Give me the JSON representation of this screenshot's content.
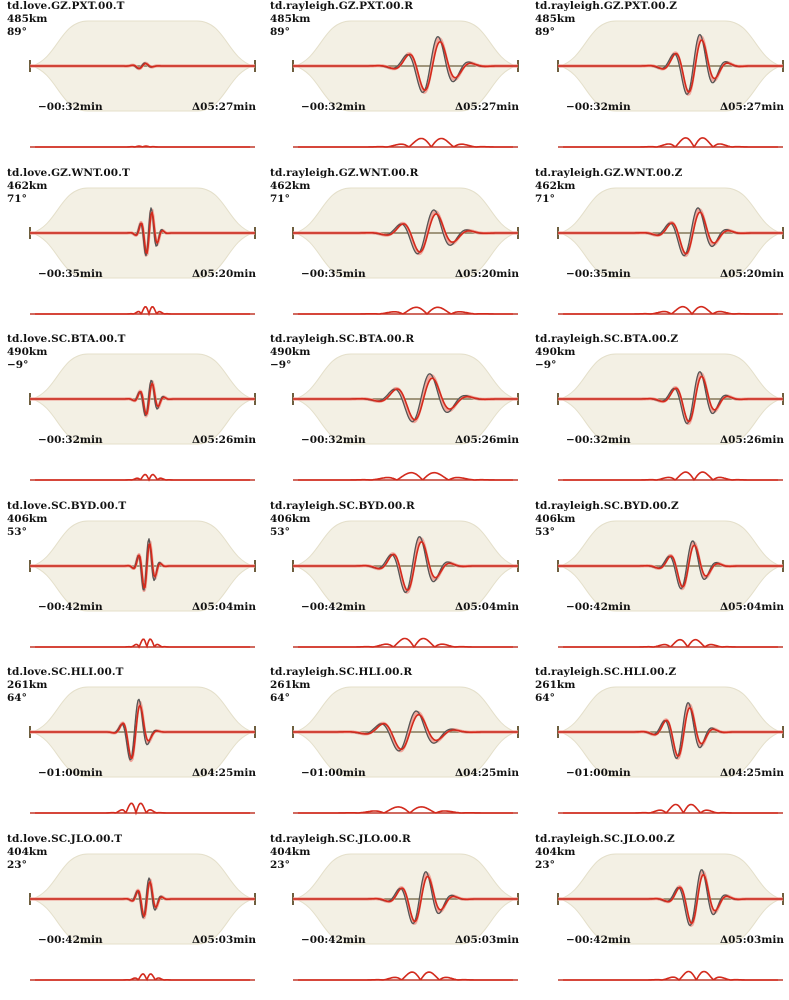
{
  "chart_data": [
    {
      "type": "line",
      "title": "td.love.GZ.PXT.00.T",
      "distance": "485km",
      "azimuth": "89°",
      "time_start": "−00:32min",
      "time_end": "Δ05:27min",
      "series": [
        {
          "values": []
        },
        {
          "values": []
        }
      ],
      "legend": "none",
      "grid": false
    },
    {
      "type": "line",
      "title": "td.rayleigh.GZ.PXT.00.R",
      "distance": "485km",
      "azimuth": "89°",
      "time_start": "−00:32min",
      "time_end": "Δ05:27min",
      "series": [
        {
          "values": []
        },
        {
          "values": []
        }
      ],
      "legend": "none",
      "grid": false
    },
    {
      "type": "line",
      "title": "td.rayleigh.GZ.PXT.00.Z",
      "distance": "485km",
      "azimuth": "89°",
      "time_start": "−00:32min",
      "time_end": "Δ05:27min",
      "series": [
        {
          "values": []
        },
        {
          "values": []
        }
      ],
      "legend": "none",
      "grid": false
    },
    {
      "type": "line",
      "title": "td.love.GZ.WNT.00.T",
      "distance": "462km",
      "azimuth": "71°",
      "time_start": "−00:35min",
      "time_end": "Δ05:20min",
      "series": [
        {
          "values": []
        },
        {
          "values": []
        }
      ],
      "legend": "none",
      "grid": false
    },
    {
      "type": "line",
      "title": "td.rayleigh.GZ.WNT.00.R",
      "distance": "462km",
      "azimuth": "71°",
      "time_start": "−00:35min",
      "time_end": "Δ05:20min",
      "series": [
        {
          "values": []
        },
        {
          "values": []
        }
      ],
      "legend": "none",
      "grid": false
    },
    {
      "type": "line",
      "title": "td.rayleigh.GZ.WNT.00.Z",
      "distance": "462km",
      "azimuth": "71°",
      "time_start": "−00:35min",
      "time_end": "Δ05:20min",
      "series": [
        {
          "values": []
        },
        {
          "values": []
        }
      ],
      "legend": "none",
      "grid": false
    },
    {
      "type": "line",
      "title": "td.love.SC.BTA.00.T",
      "distance": "490km",
      "azimuth": "−9°",
      "time_start": "−00:32min",
      "time_end": "Δ05:26min",
      "series": [
        {
          "values": []
        },
        {
          "values": []
        }
      ],
      "legend": "none",
      "grid": false
    },
    {
      "type": "line",
      "title": "td.rayleigh.SC.BTA.00.R",
      "distance": "490km",
      "azimuth": "−9°",
      "time_start": "−00:32min",
      "time_end": "Δ05:26min",
      "series": [
        {
          "values": []
        },
        {
          "values": []
        }
      ],
      "legend": "none",
      "grid": false
    },
    {
      "type": "line",
      "title": "td.rayleigh.SC.BTA.00.Z",
      "distance": "490km",
      "azimuth": "−9°",
      "time_start": "−00:32min",
      "time_end": "Δ05:26min",
      "series": [
        {
          "values": []
        },
        {
          "values": []
        }
      ],
      "legend": "none",
      "grid": false
    },
    {
      "type": "line",
      "title": "td.love.SC.BYD.00.T",
      "distance": "406km",
      "azimuth": "53°",
      "time_start": "−00:42min",
      "time_end": "Δ05:04min",
      "series": [
        {
          "values": []
        },
        {
          "values": []
        }
      ],
      "legend": "none",
      "grid": false
    },
    {
      "type": "line",
      "title": "td.rayleigh.SC.BYD.00.R",
      "distance": "406km",
      "azimuth": "53°",
      "time_start": "−00:42min",
      "time_end": "Δ05:04min",
      "series": [
        {
          "values": []
        },
        {
          "values": []
        }
      ],
      "legend": "none",
      "grid": false
    },
    {
      "type": "line",
      "title": "td.rayleigh.SC.BYD.00.Z",
      "distance": "406km",
      "azimuth": "53°",
      "time_start": "−00:42min",
      "time_end": "Δ05:04min",
      "series": [
        {
          "values": []
        },
        {
          "values": []
        }
      ],
      "legend": "none",
      "grid": false
    },
    {
      "type": "line",
      "title": "td.love.SC.HLI.00.T",
      "distance": "261km",
      "azimuth": "64°",
      "time_start": "−01:00min",
      "time_end": "Δ04:25min",
      "series": [
        {
          "values": []
        },
        {
          "values": []
        }
      ],
      "legend": "none",
      "grid": false
    },
    {
      "type": "line",
      "title": "td.rayleigh.SC.HLI.00.R",
      "distance": "261km",
      "azimuth": "64°",
      "time_start": "−01:00min",
      "time_end": "Δ04:25min",
      "series": [
        {
          "values": []
        },
        {
          "values": []
        }
      ],
      "legend": "none",
      "grid": false
    },
    {
      "type": "line",
      "title": "td.rayleigh.SC.HLI.00.Z",
      "distance": "261km",
      "azimuth": "64°",
      "time_start": "−01:00min",
      "time_end": "Δ04:25min",
      "series": [
        {
          "values": []
        },
        {
          "values": []
        }
      ],
      "legend": "none",
      "grid": false
    },
    {
      "type": "line",
      "title": "td.love.SC.JLO.00.T",
      "distance": "404km",
      "azimuth": "23°",
      "time_start": "−00:42min",
      "time_end": "Δ05:03min",
      "series": [
        {
          "values": []
        },
        {
          "values": []
        }
      ],
      "legend": "none",
      "grid": false
    },
    {
      "type": "line",
      "title": "td.rayleigh.SC.JLO.00.R",
      "distance": "404km",
      "azimuth": "23°",
      "time_start": "−00:42min",
      "time_end": "Δ05:03min",
      "series": [
        {
          "values": []
        },
        {
          "values": []
        }
      ],
      "legend": "none",
      "grid": false
    },
    {
      "type": "line",
      "title": "td.rayleigh.SC.JLO.00.Z",
      "distance": "404km",
      "azimuth": "23°",
      "time_start": "−00:42min",
      "time_end": "Δ05:03min",
      "series": [
        {
          "values": []
        },
        {
          "values": []
        }
      ],
      "legend": "none",
      "grid": false
    }
  ],
  "colors": {
    "observed": "#555555",
    "synthetic": "#d42a1c",
    "synthetic_spread": "#f0a79c",
    "secondary": "#3b73c4",
    "window_fill": "#f3f0e4",
    "window_edge": "#e4dfca",
    "axis": "#6e5f3f",
    "baseline": "#c0392b"
  }
}
